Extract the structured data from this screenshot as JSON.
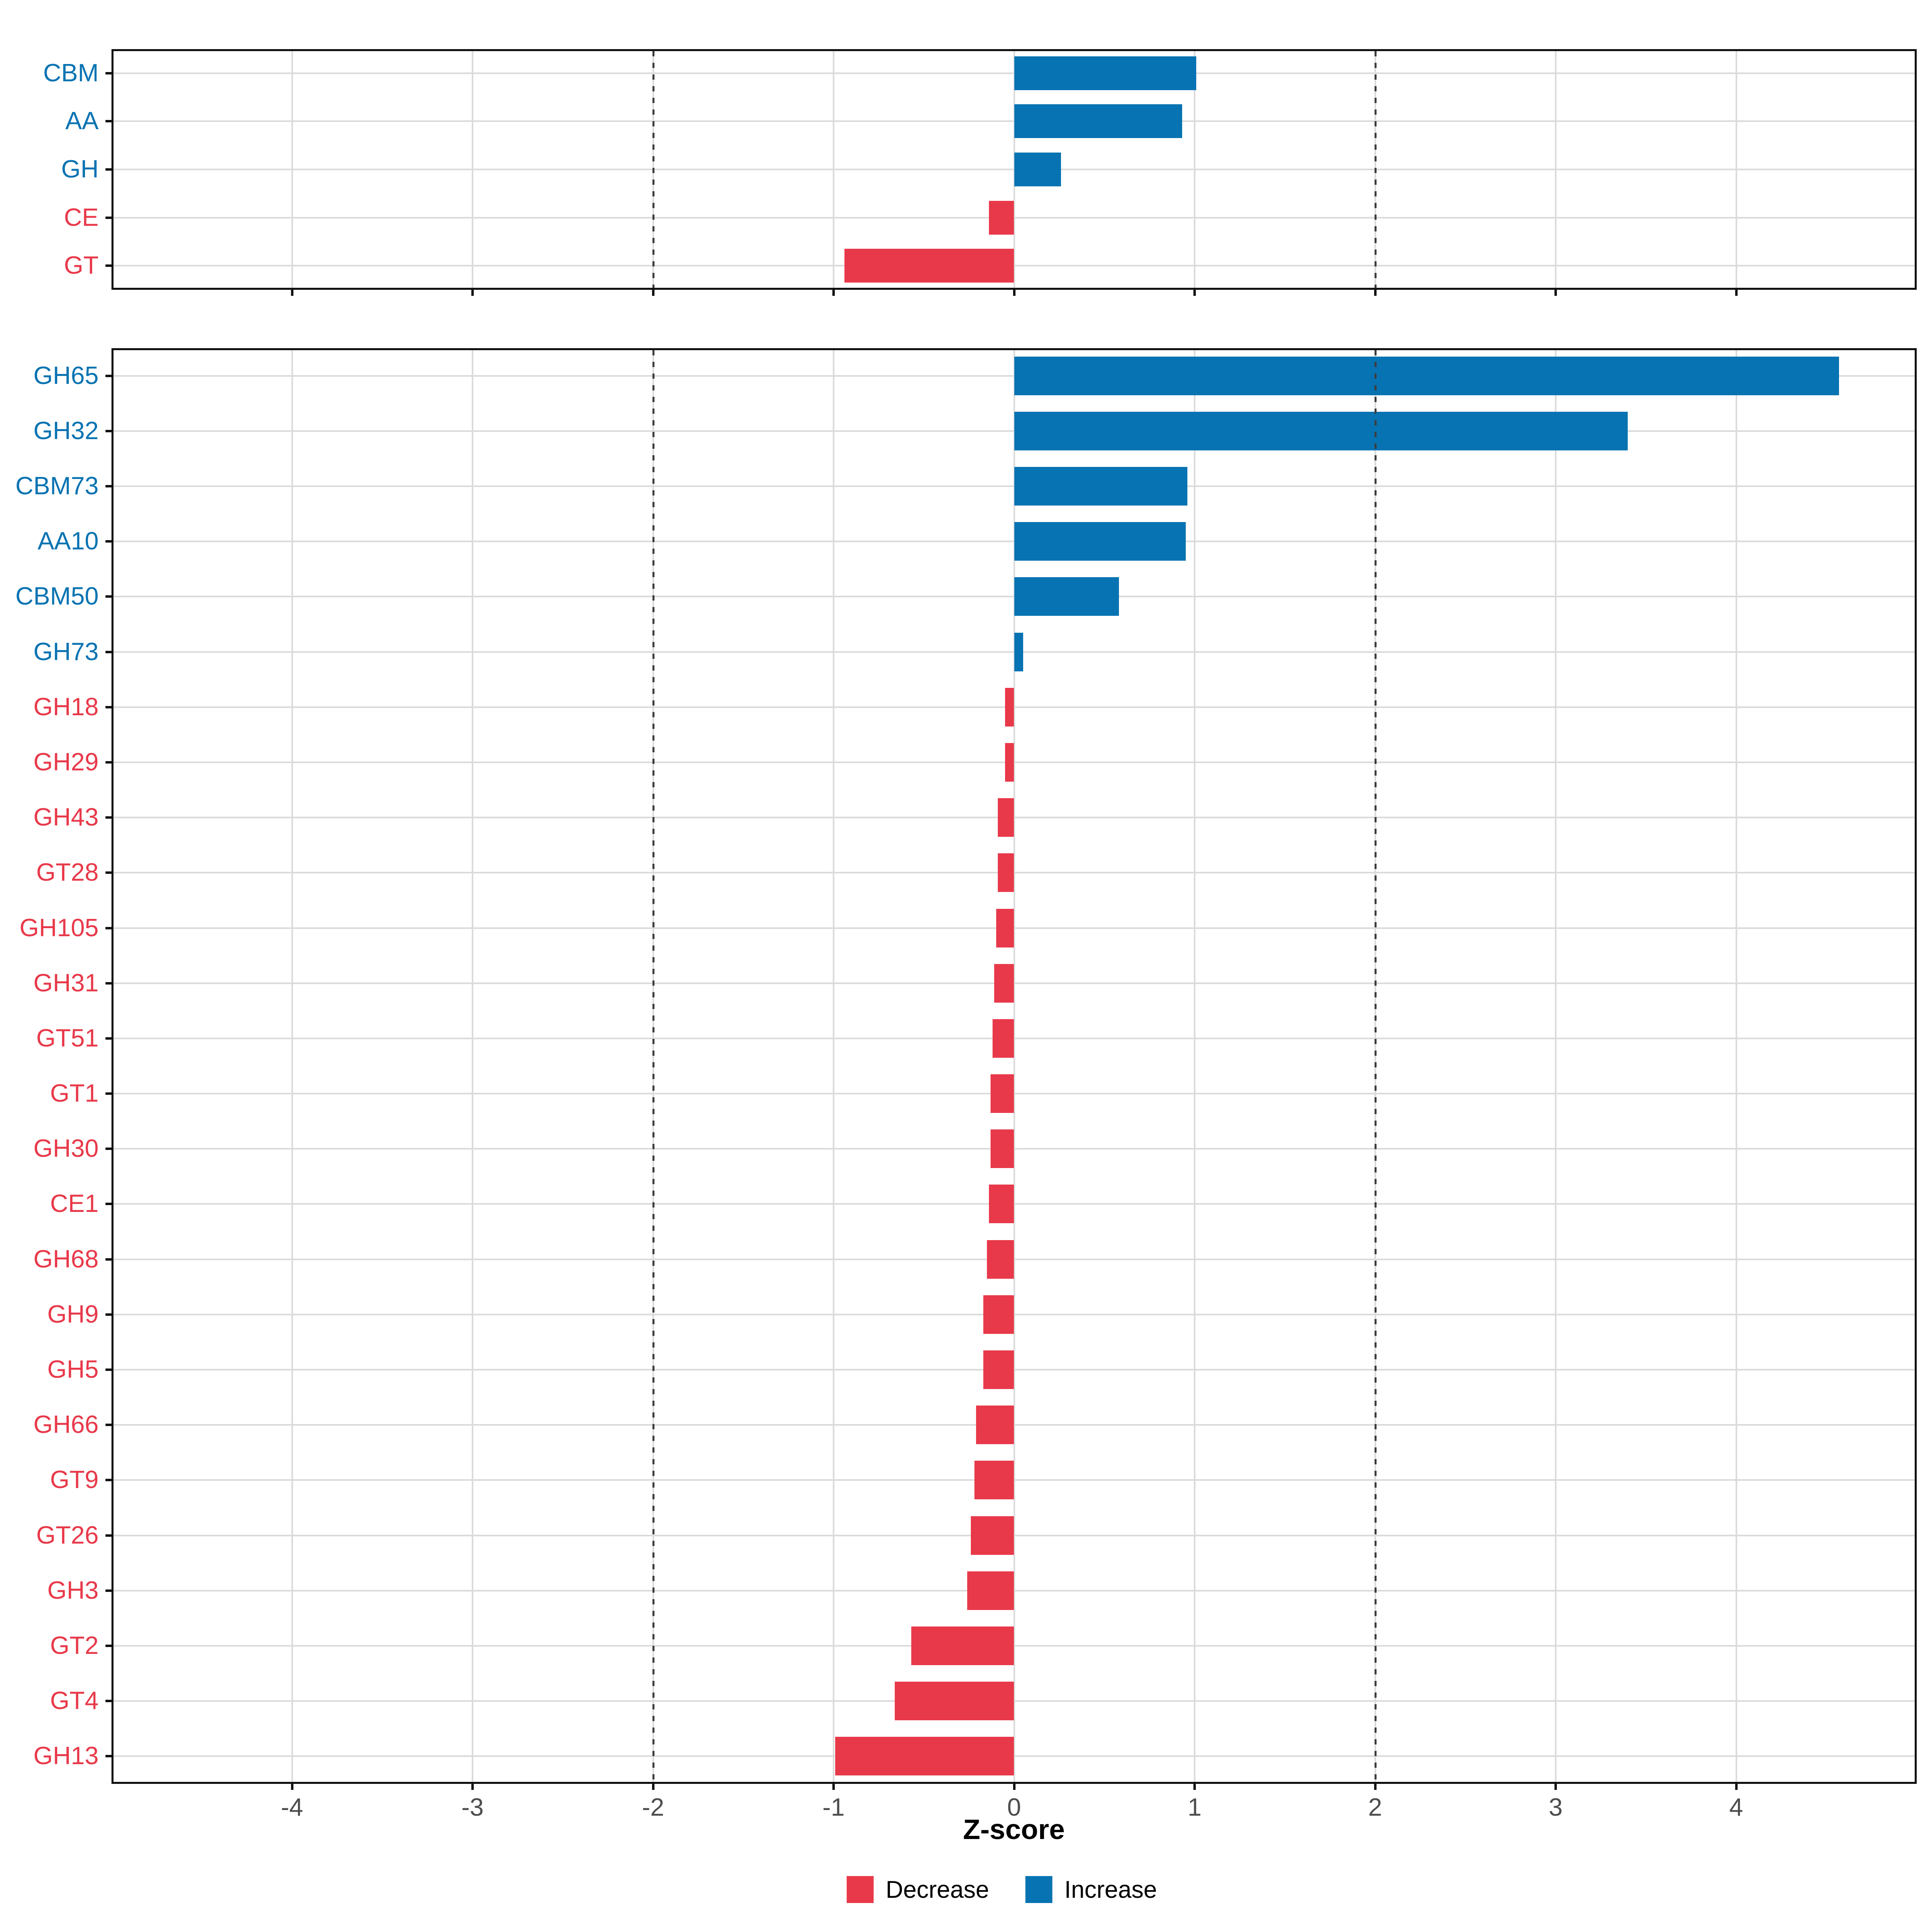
{
  "figure": {
    "xlabel": "Z-score",
    "x_breaks": [
      -4,
      -3,
      -2,
      -1,
      0,
      1,
      2,
      3,
      4
    ],
    "x_range": [
      -5,
      5
    ],
    "dashed_vlines": [
      -2,
      2
    ],
    "grid": true,
    "legend_position": "bottom"
  },
  "colors": {
    "decrease": "#E8394A",
    "increase": "#0873B2",
    "gridline": "#DBDBDB",
    "axis_text": "#4D4D4D",
    "dashed_line": "#3D3D3D",
    "panel_border": "#111111"
  },
  "legend": {
    "items": [
      {
        "label": "Decrease",
        "color": "#E8394A",
        "direction": "decrease"
      },
      {
        "label": "Increase",
        "color": "#0873B2",
        "direction": "increase"
      }
    ]
  },
  "chart_data": [
    {
      "type": "bar",
      "orientation": "horizontal",
      "title": "",
      "panel": "cazyme-class-panel",
      "categories": [
        "CBM",
        "AA",
        "GH",
        "CE",
        "GT"
      ],
      "values": [
        1.01,
        0.93,
        0.26,
        -0.14,
        -0.94
      ],
      "xlabel": "Z-score",
      "xlim": [
        -5,
        5
      ],
      "xticks": [
        -4,
        -3,
        -2,
        -1,
        0,
        1,
        2,
        3,
        4
      ],
      "tick_labels_shown": false,
      "dashed_vlines": [
        -2,
        2
      ]
    },
    {
      "type": "bar",
      "orientation": "horizontal",
      "title": "",
      "panel": "cazyme-family-panel",
      "categories": [
        "GH65",
        "GH32",
        "CBM73",
        "AA10",
        "CBM50",
        "GH73",
        "GH18",
        "GH29",
        "GH43",
        "GT28",
        "GH105",
        "GH31",
        "GT51",
        "GT1",
        "GH30",
        "CE1",
        "GH68",
        "GH9",
        "GH5",
        "GH66",
        "GT9",
        "GT26",
        "GH3",
        "GT2",
        "GT4",
        "GH13"
      ],
      "values": [
        4.57,
        3.4,
        0.96,
        0.95,
        0.58,
        0.05,
        -0.05,
        -0.05,
        -0.09,
        -0.09,
        -0.1,
        -0.11,
        -0.12,
        -0.13,
        -0.13,
        -0.14,
        -0.15,
        -0.17,
        -0.17,
        -0.21,
        -0.22,
        -0.24,
        -0.26,
        -0.57,
        -0.66,
        -0.99
      ],
      "xlabel": "Z-score",
      "xlim": [
        -5,
        5
      ],
      "xticks": [
        -4,
        -3,
        -2,
        -1,
        0,
        1,
        2,
        3,
        4
      ],
      "tick_labels_shown": true,
      "dashed_vlines": [
        -2,
        2
      ]
    }
  ]
}
